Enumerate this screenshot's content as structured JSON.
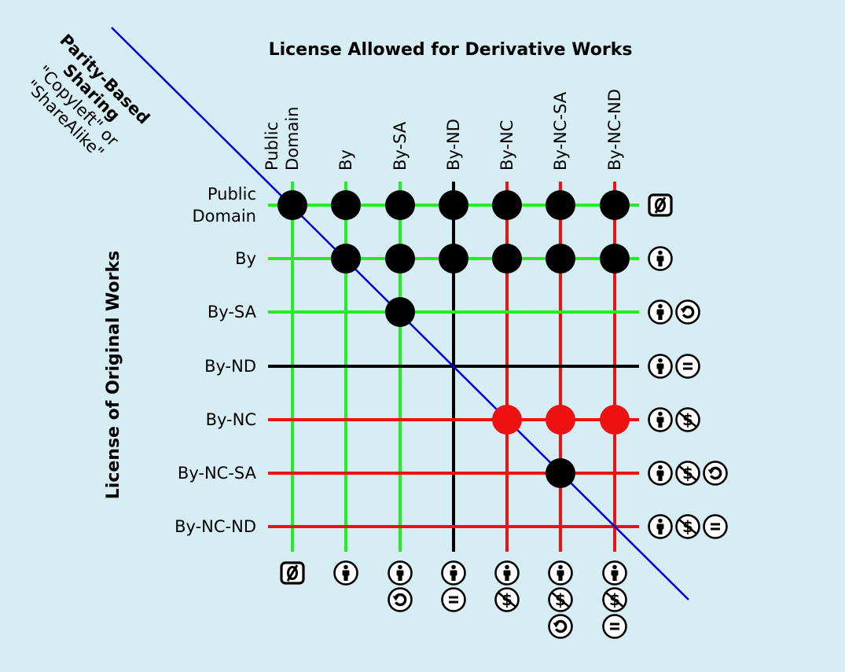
{
  "title": "License Allowed for Derivative Works",
  "y_axis_label": "License of Original Works",
  "diagonal_label": {
    "line1": "Parity-Based",
    "line2": "Sharing",
    "line3": "\"Copyleft\" or",
    "line4": "\"ShareAlike\""
  },
  "columns": [
    {
      "label": [
        "Public",
        "Domain"
      ],
      "line_color": "#22ee22",
      "icons": [
        "pd"
      ]
    },
    {
      "label": [
        "By"
      ],
      "line_color": "#22ee22",
      "icons": [
        "by"
      ]
    },
    {
      "label": [
        "By-SA"
      ],
      "line_color": "#22ee22",
      "icons": [
        "by",
        "sa"
      ]
    },
    {
      "label": [
        "By-ND"
      ],
      "line_color": "#000000",
      "icons": [
        "by",
        "nd"
      ]
    },
    {
      "label": [
        "By-NC"
      ],
      "line_color": "#ee1111",
      "icons": [
        "by",
        "nc"
      ]
    },
    {
      "label": [
        "By-NC-SA"
      ],
      "line_color": "#ee1111",
      "icons": [
        "by",
        "nc",
        "sa"
      ]
    },
    {
      "label": [
        "By-NC-ND"
      ],
      "line_color": "#ee1111",
      "icons": [
        "by",
        "nc",
        "nd"
      ]
    }
  ],
  "rows": [
    {
      "label": [
        "Public",
        "Domain"
      ],
      "line_color": "#22ee22",
      "icons": [
        "pd"
      ]
    },
    {
      "label": [
        "By"
      ],
      "line_color": "#22ee22",
      "icons": [
        "by"
      ]
    },
    {
      "label": [
        "By-SA"
      ],
      "line_color": "#22ee22",
      "icons": [
        "by",
        "sa"
      ]
    },
    {
      "label": [
        "By-ND"
      ],
      "line_color": "#000000",
      "icons": [
        "by",
        "nd"
      ]
    },
    {
      "label": [
        "By-NC"
      ],
      "line_color": "#ee1111",
      "icons": [
        "by",
        "nc"
      ]
    },
    {
      "label": [
        "By-NC-SA"
      ],
      "line_color": "#ee1111",
      "icons": [
        "by",
        "nc",
        "sa"
      ]
    },
    {
      "label": [
        "By-NC-ND"
      ],
      "line_color": "#ee1111",
      "icons": [
        "by",
        "nc",
        "nd"
      ]
    }
  ],
  "dots": [
    {
      "row": 0,
      "col": 0,
      "color": "#000000"
    },
    {
      "row": 0,
      "col": 1,
      "color": "#000000"
    },
    {
      "row": 0,
      "col": 2,
      "color": "#000000"
    },
    {
      "row": 0,
      "col": 3,
      "color": "#000000"
    },
    {
      "row": 0,
      "col": 4,
      "color": "#000000"
    },
    {
      "row": 0,
      "col": 5,
      "color": "#000000"
    },
    {
      "row": 0,
      "col": 6,
      "color": "#000000"
    },
    {
      "row": 1,
      "col": 1,
      "color": "#000000"
    },
    {
      "row": 1,
      "col": 2,
      "color": "#000000"
    },
    {
      "row": 1,
      "col": 3,
      "color": "#000000"
    },
    {
      "row": 1,
      "col": 4,
      "color": "#000000"
    },
    {
      "row": 1,
      "col": 5,
      "color": "#000000"
    },
    {
      "row": 1,
      "col": 6,
      "color": "#000000"
    },
    {
      "row": 2,
      "col": 2,
      "color": "#000000"
    },
    {
      "row": 4,
      "col": 4,
      "color": "#ee1111"
    },
    {
      "row": 4,
      "col": 5,
      "color": "#ee1111"
    },
    {
      "row": 4,
      "col": 6,
      "color": "#ee1111"
    },
    {
      "row": 5,
      "col": 5,
      "color": "#000000"
    }
  ],
  "colors": {
    "background": "#d6edf3",
    "diagonal": "#0000dd",
    "icon_fill": "#ffffff",
    "icon_stroke": "#000000"
  }
}
